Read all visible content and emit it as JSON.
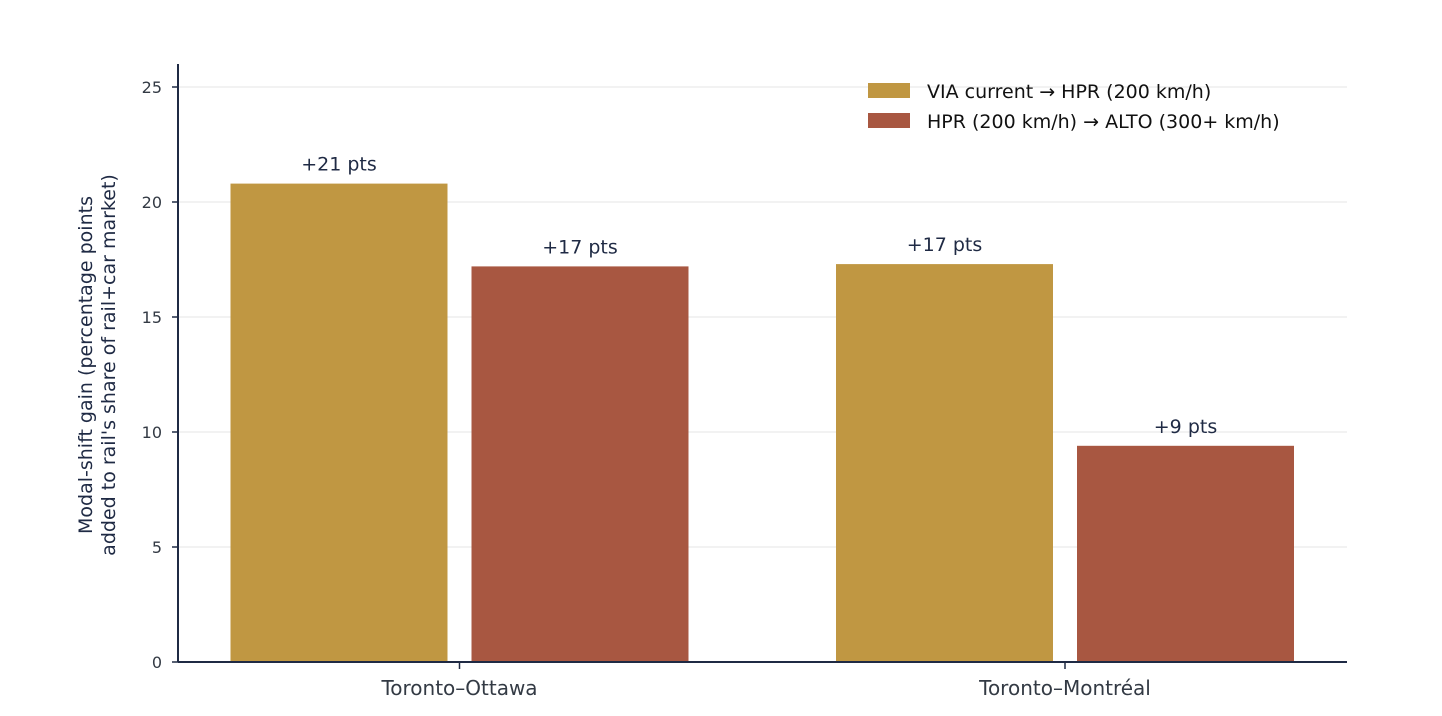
{
  "chart_data": {
    "type": "bar",
    "categories": [
      "Toronto–Ottawa",
      "Toronto–Montréal"
    ],
    "series": [
      {
        "name": "VIA current → HPR (200 km/h)",
        "values": [
          20.8,
          17.3
        ],
        "labels": [
          "+21 pts",
          "+17 pts"
        ],
        "color": "#c09742"
      },
      {
        "name": "HPR (200 km/h) → ALTO (300+ km/h)",
        "values": [
          17.2,
          9.4
        ],
        "labels": [
          "+17 pts",
          "+9 pts"
        ],
        "color": "#a85741"
      }
    ],
    "ylabel_lines": [
      "Modal-shift gain (percentage points",
      "added to rail's share of rail+car market)"
    ],
    "ylim": [
      0,
      26
    ],
    "yticks": [
      0,
      5,
      10,
      15,
      20,
      25
    ],
    "grid": true,
    "legend_position": "top-right",
    "colors": {
      "axis": "#1f2a44",
      "grid": "#e6e6e6"
    }
  }
}
